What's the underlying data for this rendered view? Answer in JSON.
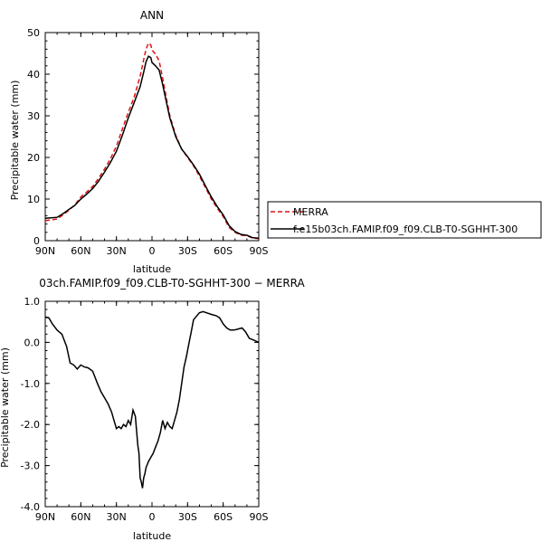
{
  "chart_data": [
    {
      "type": "line",
      "title": "ANN",
      "xlabel": "latitude",
      "ylabel": "Precipitable water (mm)",
      "xlim": [
        -90,
        90
      ],
      "ylim": [
        0,
        50
      ],
      "x_ticks": [
        {
          "value": -90,
          "label": "90N"
        },
        {
          "value": -60,
          "label": "60N"
        },
        {
          "value": -30,
          "label": "30N"
        },
        {
          "value": 0,
          "label": "0"
        },
        {
          "value": 30,
          "label": "30S"
        },
        {
          "value": 60,
          "label": "60S"
        },
        {
          "value": 90,
          "label": "90S"
        }
      ],
      "y_ticks": [
        0,
        10,
        20,
        30,
        40,
        50
      ],
      "legend": "right",
      "series": [
        {
          "name": "MERRA",
          "color": "#e01010",
          "dash": "dashed",
          "points": [
            [
              -90,
              4.8
            ],
            [
              -85,
              5.0
            ],
            [
              -80,
              5.2
            ],
            [
              -75,
              6.2
            ],
            [
              -70,
              7.3
            ],
            [
              -65,
              8.6
            ],
            [
              -60,
              10.5
            ],
            [
              -55,
              11.7
            ],
            [
              -50,
              13.0
            ],
            [
              -45,
              15.0
            ],
            [
              -40,
              17.2
            ],
            [
              -35,
              19.7
            ],
            [
              -30,
              22.7
            ],
            [
              -25,
              26.8
            ],
            [
              -20,
              30.8
            ],
            [
              -15,
              34.5
            ],
            [
              -10,
              39.5
            ],
            [
              -7,
              43.5
            ],
            [
              -5,
              46.0
            ],
            [
              -3,
              47.5
            ],
            [
              -1,
              47.0
            ],
            [
              0,
              45.8
            ],
            [
              3,
              44.8
            ],
            [
              6,
              43.2
            ],
            [
              9,
              39.0
            ],
            [
              12,
              34.5
            ],
            [
              15,
              30.0
            ],
            [
              20,
              25.3
            ],
            [
              25,
              22.0
            ],
            [
              30,
              20.0
            ],
            [
              35,
              18.0
            ],
            [
              40,
              15.5
            ],
            [
              45,
              12.8
            ],
            [
              50,
              10.0
            ],
            [
              55,
              7.8
            ],
            [
              60,
              5.8
            ],
            [
              65,
              3.2
            ],
            [
              70,
              2.0
            ],
            [
              75,
              1.3
            ],
            [
              80,
              1.2
            ],
            [
              85,
              0.6
            ],
            [
              90,
              0.5
            ]
          ]
        },
        {
          "name": "f.e15b03ch.FAMIP.f09_f09.CLB-T0-SGHHT-300",
          "color": "#000000",
          "dash": "solid",
          "points": [
            [
              -90,
              5.4
            ],
            [
              -85,
              5.5
            ],
            [
              -80,
              5.6
            ],
            [
              -75,
              6.5
            ],
            [
              -70,
              7.5
            ],
            [
              -65,
              8.5
            ],
            [
              -60,
              10.0
            ],
            [
              -55,
              11.2
            ],
            [
              -50,
              12.5
            ],
            [
              -45,
              14.3
            ],
            [
              -40,
              16.5
            ],
            [
              -35,
              18.8
            ],
            [
              -30,
              21.5
            ],
            [
              -25,
              25.3
            ],
            [
              -20,
              29.5
            ],
            [
              -15,
              33.2
            ],
            [
              -10,
              37.0
            ],
            [
              -7,
              40.5
            ],
            [
              -5,
              43.0
            ],
            [
              -3,
              44.3
            ],
            [
              -1,
              44.0
            ],
            [
              0,
              42.8
            ],
            [
              3,
              42.0
            ],
            [
              6,
              41.0
            ],
            [
              9,
              37.5
            ],
            [
              12,
              33.5
            ],
            [
              15,
              29.5
            ],
            [
              20,
              25.0
            ],
            [
              25,
              22.0
            ],
            [
              30,
              20.2
            ],
            [
              35,
              18.2
            ],
            [
              40,
              16.0
            ],
            [
              45,
              13.2
            ],
            [
              50,
              10.5
            ],
            [
              55,
              8.2
            ],
            [
              60,
              6.2
            ],
            [
              65,
              3.6
            ],
            [
              70,
              2.2
            ],
            [
              75,
              1.5
            ],
            [
              80,
              1.3
            ],
            [
              85,
              0.7
            ],
            [
              90,
              0.6
            ]
          ]
        }
      ]
    },
    {
      "type": "line",
      "title": "03ch.FAMIP.f09_f09.CLB-T0-SGHHT-300 − MERRA",
      "xlabel": "latitude",
      "ylabel": "Precipitable water (mm)",
      "xlim": [
        -90,
        90
      ],
      "ylim": [
        -4,
        1
      ],
      "x_ticks": [
        {
          "value": -90,
          "label": "90N"
        },
        {
          "value": -60,
          "label": "60N"
        },
        {
          "value": -30,
          "label": "30N"
        },
        {
          "value": 0,
          "label": "0"
        },
        {
          "value": 30,
          "label": "30S"
        },
        {
          "value": 60,
          "label": "60S"
        },
        {
          "value": 90,
          "label": "90S"
        }
      ],
      "y_ticks": [
        "-4.0",
        "-3.0",
        "-2.0",
        "-1.0",
        "0.0",
        "1.0"
      ],
      "series": [
        {
          "color": "#000000",
          "dash": "solid",
          "points": [
            [
              -90,
              0.62
            ],
            [
              -87,
              0.6
            ],
            [
              -84,
              0.45
            ],
            [
              -80,
              0.3
            ],
            [
              -76,
              0.2
            ],
            [
              -72,
              -0.1
            ],
            [
              -69,
              -0.5
            ],
            [
              -66,
              -0.55
            ],
            [
              -63,
              -0.65
            ],
            [
              -60,
              -0.55
            ],
            [
              -57,
              -0.6
            ],
            [
              -54,
              -0.62
            ],
            [
              -50,
              -0.7
            ],
            [
              -46,
              -1.0
            ],
            [
              -43,
              -1.2
            ],
            [
              -40,
              -1.35
            ],
            [
              -37,
              -1.5
            ],
            [
              -34,
              -1.7
            ],
            [
              -32,
              -1.9
            ],
            [
              -30,
              -2.1
            ],
            [
              -28,
              -2.05
            ],
            [
              -26,
              -2.1
            ],
            [
              -24,
              -2.0
            ],
            [
              -22,
              -2.05
            ],
            [
              -20,
              -1.9
            ],
            [
              -18,
              -2.0
            ],
            [
              -16,
              -1.65
            ],
            [
              -14,
              -1.8
            ],
            [
              -12,
              -2.5
            ],
            [
              -11,
              -2.7
            ],
            [
              -10,
              -3.3
            ],
            [
              -9,
              -3.4
            ],
            [
              -8,
              -3.55
            ],
            [
              -7,
              -3.3
            ],
            [
              -6,
              -3.2
            ],
            [
              -5,
              -3.05
            ],
            [
              -3,
              -2.9
            ],
            [
              -1,
              -2.8
            ],
            [
              1,
              -2.7
            ],
            [
              3,
              -2.55
            ],
            [
              5,
              -2.4
            ],
            [
              7,
              -2.2
            ],
            [
              9,
              -1.9
            ],
            [
              11,
              -2.1
            ],
            [
              13,
              -1.95
            ],
            [
              15,
              -2.05
            ],
            [
              17,
              -2.1
            ],
            [
              19,
              -1.9
            ],
            [
              21,
              -1.7
            ],
            [
              23,
              -1.4
            ],
            [
              25,
              -1.0
            ],
            [
              27,
              -0.6
            ],
            [
              29,
              -0.35
            ],
            [
              31,
              -0.05
            ],
            [
              33,
              0.25
            ],
            [
              35,
              0.55
            ],
            [
              37,
              0.62
            ],
            [
              40,
              0.72
            ],
            [
              43,
              0.75
            ],
            [
              46,
              0.72
            ],
            [
              50,
              0.68
            ],
            [
              54,
              0.65
            ],
            [
              57,
              0.6
            ],
            [
              60,
              0.45
            ],
            [
              63,
              0.35
            ],
            [
              66,
              0.3
            ],
            [
              69,
              0.3
            ],
            [
              72,
              0.32
            ],
            [
              76,
              0.35
            ],
            [
              79,
              0.25
            ],
            [
              82,
              0.1
            ],
            [
              86,
              0.05
            ],
            [
              90,
              0.0
            ]
          ]
        }
      ]
    }
  ]
}
